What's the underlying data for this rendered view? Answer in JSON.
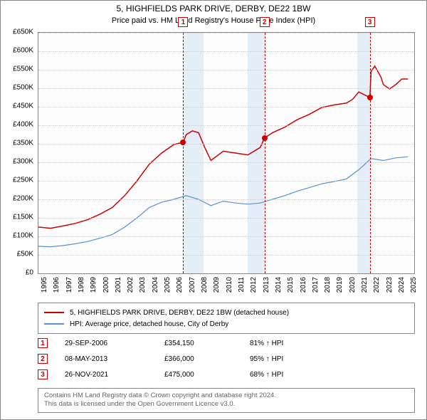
{
  "title": "5, HIGHFIELDS PARK DRIVE, DERBY, DE22 1BW",
  "subtitle": "Price paid vs. HM Land Registry's House Price Index (HPI)",
  "chart": {
    "type": "line",
    "background_color": "#fdfdfd",
    "grid_color": "#cccccc",
    "axis_color": "#888888",
    "label_fontsize": 10,
    "title_fontsize": 12,
    "x": {
      "min": 1995,
      "max": 2025.5,
      "ticks": [
        1995,
        1996,
        1997,
        1998,
        1999,
        2000,
        2001,
        2002,
        2003,
        2004,
        2005,
        2006,
        2007,
        2008,
        2009,
        2010,
        2011,
        2012,
        2013,
        2014,
        2015,
        2016,
        2017,
        2018,
        2019,
        2020,
        2021,
        2022,
        2023,
        2024,
        2025
      ]
    },
    "y": {
      "min": 0,
      "max": 650000,
      "tick_step": 50000,
      "labels": [
        "£0",
        "£50K",
        "£100K",
        "£150K",
        "£200K",
        "£250K",
        "£300K",
        "£350K",
        "£400K",
        "£450K",
        "£500K",
        "£550K",
        "£600K",
        "£650K"
      ]
    },
    "shade_bands": [
      {
        "from": 2006.75,
        "to": 2008.4
      },
      {
        "from": 2012.0,
        "to": 2013.35
      },
      {
        "from": 2020.85,
        "to": 2021.9
      }
    ],
    "sales": [
      {
        "n": "1",
        "year": 2006.75,
        "price": 354150,
        "date": "29-SEP-2006",
        "pct": "81% ↑ HPI"
      },
      {
        "n": "2",
        "year": 2013.35,
        "price": 366000,
        "date": "08-MAY-2013",
        "pct": "95% ↑ HPI"
      },
      {
        "n": "3",
        "year": 2021.9,
        "price": 475000,
        "date": "26-NOV-2021",
        "pct": "68% ↑ HPI"
      }
    ],
    "series": [
      {
        "name": "5, HIGHFIELDS PARK DRIVE, DERBY, DE22 1BW (detached house)",
        "color": "#cc0000",
        "line_width": 1.5,
        "points": [
          [
            1995,
            125000
          ],
          [
            1996,
            122000
          ],
          [
            1997,
            128000
          ],
          [
            1998,
            135000
          ],
          [
            1999,
            145000
          ],
          [
            2000,
            160000
          ],
          [
            2001,
            178000
          ],
          [
            2002,
            210000
          ],
          [
            2003,
            250000
          ],
          [
            2004,
            295000
          ],
          [
            2005,
            325000
          ],
          [
            2006,
            348000
          ],
          [
            2006.75,
            354150
          ],
          [
            2007,
            375000
          ],
          [
            2007.5,
            385000
          ],
          [
            2008,
            380000
          ],
          [
            2008.5,
            340000
          ],
          [
            2009,
            305000
          ],
          [
            2010,
            330000
          ],
          [
            2011,
            325000
          ],
          [
            2012,
            320000
          ],
          [
            2013,
            340000
          ],
          [
            2013.35,
            366000
          ],
          [
            2014,
            380000
          ],
          [
            2015,
            395000
          ],
          [
            2016,
            415000
          ],
          [
            2017,
            430000
          ],
          [
            2018,
            448000
          ],
          [
            2019,
            455000
          ],
          [
            2020,
            460000
          ],
          [
            2020.5,
            470000
          ],
          [
            2021,
            490000
          ],
          [
            2021.9,
            475000
          ],
          [
            2022,
            545000
          ],
          [
            2022.3,
            560000
          ],
          [
            2022.8,
            530000
          ],
          [
            2023,
            510000
          ],
          [
            2023.5,
            498000
          ],
          [
            2024,
            510000
          ],
          [
            2024.5,
            525000
          ],
          [
            2025,
            525000
          ]
        ]
      },
      {
        "name": "HPI: Average price, detached house, City of Derby",
        "color": "#5b8fd6",
        "line_width": 1.2,
        "points": [
          [
            1995,
            73000
          ],
          [
            1996,
            72000
          ],
          [
            1997,
            75000
          ],
          [
            1998,
            80000
          ],
          [
            1999,
            86000
          ],
          [
            2000,
            95000
          ],
          [
            2001,
            105000
          ],
          [
            2002,
            125000
          ],
          [
            2003,
            150000
          ],
          [
            2004,
            178000
          ],
          [
            2005,
            192000
          ],
          [
            2006,
            200000
          ],
          [
            2007,
            210000
          ],
          [
            2008,
            200000
          ],
          [
            2009,
            183000
          ],
          [
            2010,
            195000
          ],
          [
            2011,
            190000
          ],
          [
            2012,
            187000
          ],
          [
            2013,
            190000
          ],
          [
            2014,
            200000
          ],
          [
            2015,
            210000
          ],
          [
            2016,
            222000
          ],
          [
            2017,
            232000
          ],
          [
            2018,
            242000
          ],
          [
            2019,
            248000
          ],
          [
            2020,
            255000
          ],
          [
            2021,
            280000
          ],
          [
            2022,
            310000
          ],
          [
            2023,
            305000
          ],
          [
            2024,
            312000
          ],
          [
            2025,
            315000
          ]
        ]
      }
    ]
  },
  "legend": {
    "rows": [
      {
        "color": "#cc0000",
        "label": "5, HIGHFIELDS PARK DRIVE, DERBY, DE22 1BW (detached house)"
      },
      {
        "color": "#5b8fd6",
        "label": "HPI: Average price, detached house, City of Derby"
      }
    ]
  },
  "attribution": {
    "line1": "Contains HM Land Registry data © Crown copyright and database right 2024.",
    "line2": "This data is licensed under the Open Government Licence v3.0."
  }
}
